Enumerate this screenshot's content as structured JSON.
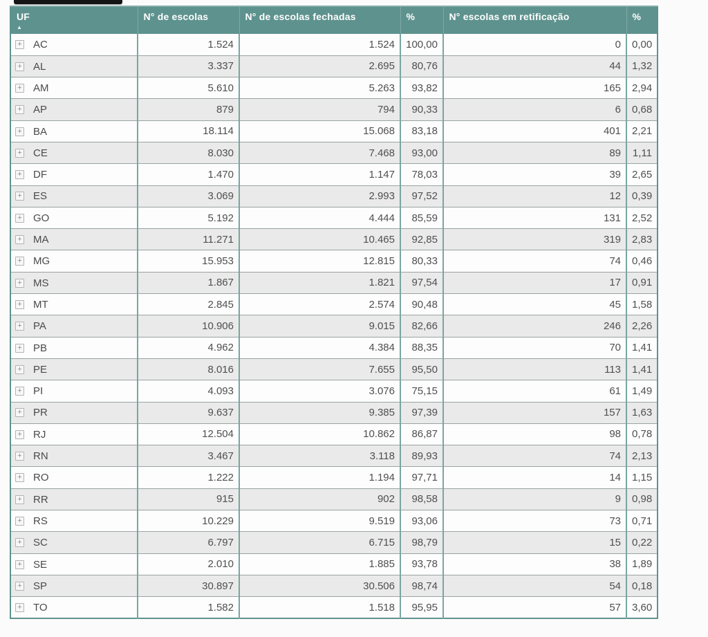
{
  "table": {
    "sort": {
      "column": "UF",
      "direction": "ascending",
      "arrow": "▲"
    },
    "expand_icon": "+",
    "columns": [
      {
        "label": "UF"
      },
      {
        "label": "N° de escolas"
      },
      {
        "label": "N° de escolas fechadas"
      },
      {
        "label": "%"
      },
      {
        "label": "N° escolas em retificação"
      },
      {
        "label": "%"
      }
    ],
    "rows": [
      {
        "uf": "AC",
        "escolas": "1.524",
        "fechadas": "1.524",
        "pct_fechadas": "100,00",
        "retificacao": "0",
        "pct_retificacao": "0,00"
      },
      {
        "uf": "AL",
        "escolas": "3.337",
        "fechadas": "2.695",
        "pct_fechadas": "80,76",
        "retificacao": "44",
        "pct_retificacao": "1,32"
      },
      {
        "uf": "AM",
        "escolas": "5.610",
        "fechadas": "5.263",
        "pct_fechadas": "93,82",
        "retificacao": "165",
        "pct_retificacao": "2,94"
      },
      {
        "uf": "AP",
        "escolas": "879",
        "fechadas": "794",
        "pct_fechadas": "90,33",
        "retificacao": "6",
        "pct_retificacao": "0,68"
      },
      {
        "uf": "BA",
        "escolas": "18.114",
        "fechadas": "15.068",
        "pct_fechadas": "83,18",
        "retificacao": "401",
        "pct_retificacao": "2,21"
      },
      {
        "uf": "CE",
        "escolas": "8.030",
        "fechadas": "7.468",
        "pct_fechadas": "93,00",
        "retificacao": "89",
        "pct_retificacao": "1,11"
      },
      {
        "uf": "DF",
        "escolas": "1.470",
        "fechadas": "1.147",
        "pct_fechadas": "78,03",
        "retificacao": "39",
        "pct_retificacao": "2,65"
      },
      {
        "uf": "ES",
        "escolas": "3.069",
        "fechadas": "2.993",
        "pct_fechadas": "97,52",
        "retificacao": "12",
        "pct_retificacao": "0,39"
      },
      {
        "uf": "GO",
        "escolas": "5.192",
        "fechadas": "4.444",
        "pct_fechadas": "85,59",
        "retificacao": "131",
        "pct_retificacao": "2,52"
      },
      {
        "uf": "MA",
        "escolas": "11.271",
        "fechadas": "10.465",
        "pct_fechadas": "92,85",
        "retificacao": "319",
        "pct_retificacao": "2,83"
      },
      {
        "uf": "MG",
        "escolas": "15.953",
        "fechadas": "12.815",
        "pct_fechadas": "80,33",
        "retificacao": "74",
        "pct_retificacao": "0,46"
      },
      {
        "uf": "MS",
        "escolas": "1.867",
        "fechadas": "1.821",
        "pct_fechadas": "97,54",
        "retificacao": "17",
        "pct_retificacao": "0,91"
      },
      {
        "uf": "MT",
        "escolas": "2.845",
        "fechadas": "2.574",
        "pct_fechadas": "90,48",
        "retificacao": "45",
        "pct_retificacao": "1,58"
      },
      {
        "uf": "PA",
        "escolas": "10.906",
        "fechadas": "9.015",
        "pct_fechadas": "82,66",
        "retificacao": "246",
        "pct_retificacao": "2,26"
      },
      {
        "uf": "PB",
        "escolas": "4.962",
        "fechadas": "4.384",
        "pct_fechadas": "88,35",
        "retificacao": "70",
        "pct_retificacao": "1,41"
      },
      {
        "uf": "PE",
        "escolas": "8.016",
        "fechadas": "7.655",
        "pct_fechadas": "95,50",
        "retificacao": "113",
        "pct_retificacao": "1,41"
      },
      {
        "uf": "PI",
        "escolas": "4.093",
        "fechadas": "3.076",
        "pct_fechadas": "75,15",
        "retificacao": "61",
        "pct_retificacao": "1,49"
      },
      {
        "uf": "PR",
        "escolas": "9.637",
        "fechadas": "9.385",
        "pct_fechadas": "97,39",
        "retificacao": "157",
        "pct_retificacao": "1,63"
      },
      {
        "uf": "RJ",
        "escolas": "12.504",
        "fechadas": "10.862",
        "pct_fechadas": "86,87",
        "retificacao": "98",
        "pct_retificacao": "0,78"
      },
      {
        "uf": "RN",
        "escolas": "3.467",
        "fechadas": "3.118",
        "pct_fechadas": "89,93",
        "retificacao": "74",
        "pct_retificacao": "2,13"
      },
      {
        "uf": "RO",
        "escolas": "1.222",
        "fechadas": "1.194",
        "pct_fechadas": "97,71",
        "retificacao": "14",
        "pct_retificacao": "1,15"
      },
      {
        "uf": "RR",
        "escolas": "915",
        "fechadas": "902",
        "pct_fechadas": "98,58",
        "retificacao": "9",
        "pct_retificacao": "0,98"
      },
      {
        "uf": "RS",
        "escolas": "10.229",
        "fechadas": "9.519",
        "pct_fechadas": "93,06",
        "retificacao": "73",
        "pct_retificacao": "0,71"
      },
      {
        "uf": "SC",
        "escolas": "6.797",
        "fechadas": "6.715",
        "pct_fechadas": "98,79",
        "retificacao": "15",
        "pct_retificacao": "0,22"
      },
      {
        "uf": "SE",
        "escolas": "2.010",
        "fechadas": "1.885",
        "pct_fechadas": "93,78",
        "retificacao": "38",
        "pct_retificacao": "1,89"
      },
      {
        "uf": "SP",
        "escolas": "30.897",
        "fechadas": "30.506",
        "pct_fechadas": "98,74",
        "retificacao": "54",
        "pct_retificacao": "0,18"
      },
      {
        "uf": "TO",
        "escolas": "1.582",
        "fechadas": "1.518",
        "pct_fechadas": "95,95",
        "retificacao": "57",
        "pct_retificacao": "3,60"
      }
    ]
  },
  "colors": {
    "header_bg": "#5e928e",
    "header_text": "#fefefe",
    "column_divider": "#7aa5a1",
    "row_divider": "#9aa3a2",
    "row_bg": "#fdfdfd",
    "row_alt_bg": "#e9eae9",
    "cell_text": "#4f4f4f"
  }
}
